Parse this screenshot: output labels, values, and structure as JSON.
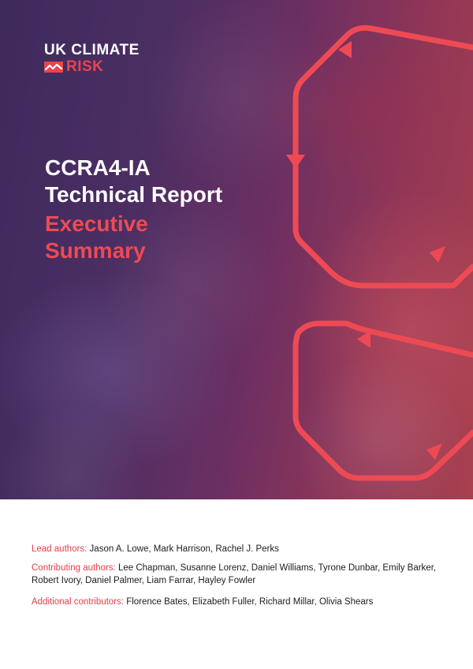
{
  "logo": {
    "line1_left": "UK",
    "line1_right": "CLIMATE",
    "line2": "RISK",
    "accent": "#e9444f"
  },
  "title": {
    "line1": "CCRA4-IA",
    "line2": "Technical Report",
    "line3": "Executive",
    "line4": "Summary"
  },
  "credits": {
    "lead_label": "Lead authors:",
    "lead_names": "Jason A. Lowe, Mark Harrison, Rachel J. Perks",
    "contributing_label": "Contributing authors:",
    "contributing_names": "Lee Chapman, Susanne Lorenz, Daniel Williams, Tyrone Dunbar, Emily Barker, Robert Ivory, Daniel Palmer, Liam Farrar, Hayley Fowler",
    "additional_label": "Additional contributors:",
    "additional_names": "Florence Bates, Elizabeth Fuller, Richard Millar, Olivia Shears"
  },
  "colors": {
    "accent_red": "#ee4a54",
    "hero_dark": "#3e2a5c",
    "hero_light": "#a8404f"
  }
}
